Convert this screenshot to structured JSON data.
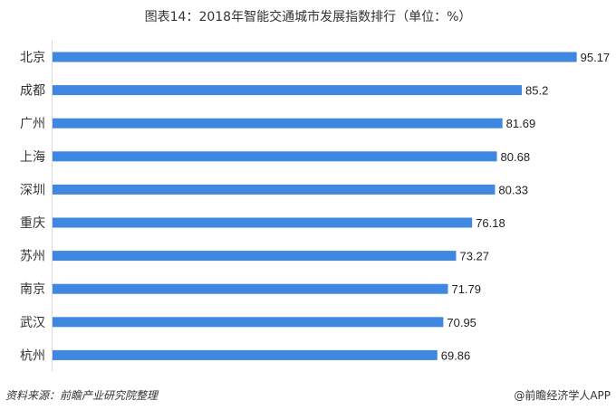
{
  "chart_data": {
    "type": "bar",
    "orientation": "horizontal",
    "title": "图表14：2018年智能交通城市发展指数排行（单位：%）",
    "categories": [
      "北京",
      "成都",
      "广州",
      "上海",
      "深圳",
      "重庆",
      "苏州",
      "南京",
      "武汉",
      "杭州"
    ],
    "values": [
      95.17,
      85.2,
      81.69,
      80.68,
      80.33,
      76.18,
      73.27,
      71.79,
      70.95,
      69.86
    ],
    "value_labels": [
      "95.17",
      "85.2",
      "81.69",
      "80.68",
      "80.33",
      "76.18",
      "73.27",
      "71.79",
      "70.95",
      "69.86"
    ],
    "xlim": [
      0,
      100
    ],
    "xlabel": "",
    "ylabel": "",
    "grid": false,
    "bar_color": "#3f87e0"
  },
  "footer": {
    "source": "资料来源：前瞻产业研究院整理",
    "credit": "@前瞻经济学人APP"
  }
}
